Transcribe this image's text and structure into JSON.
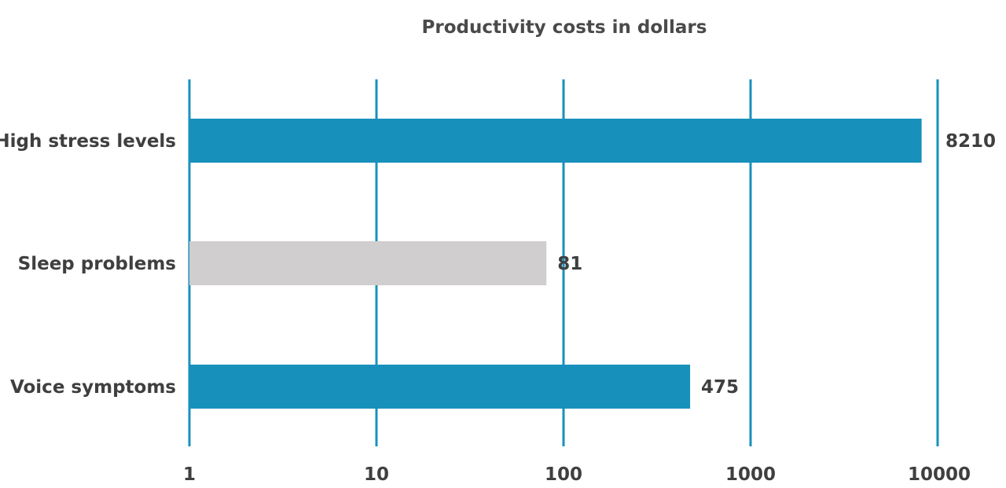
{
  "chart_data": {
    "type": "bar",
    "orientation": "horizontal",
    "title": "Productivity costs in dollars",
    "xscale": "log",
    "xlim": [
      1,
      10000
    ],
    "xticks": [
      "1",
      "10",
      "100",
      "1000",
      "10000"
    ],
    "categories": [
      "High stress levels",
      "Sleep problems",
      "Voice symptoms"
    ],
    "values": [
      8210,
      81,
      475
    ],
    "value_labels": [
      "8210",
      "81",
      "475"
    ],
    "colors": [
      "#1890bc",
      "#d0cecf",
      "#1890bc"
    ],
    "gridline_color": "#1890bc",
    "grid": true,
    "legend": "none"
  }
}
